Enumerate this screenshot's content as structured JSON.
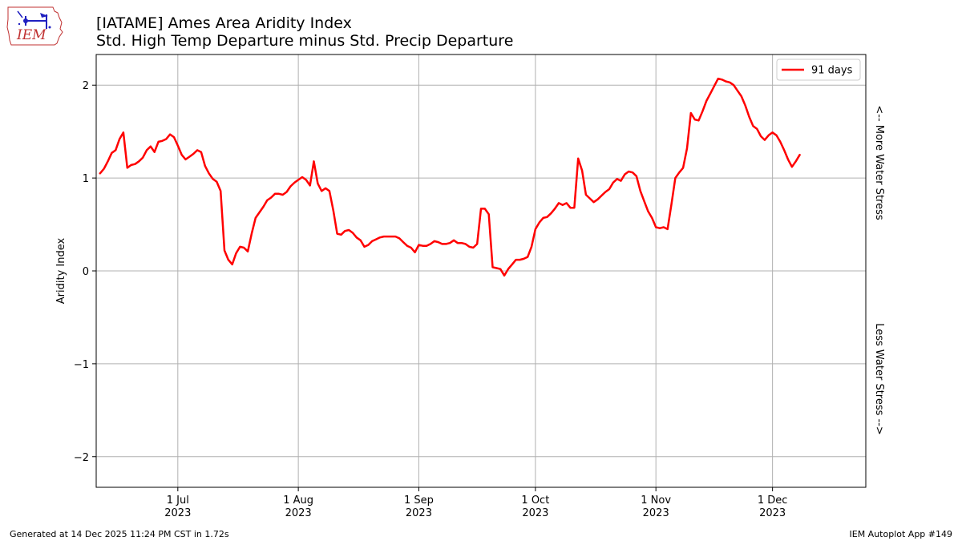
{
  "header": {
    "title": "[IATAME] Ames Area  Aridity Index",
    "subtitle": "Std. High Temp Departure minus Std. Precip Departure"
  },
  "logo": {
    "text": "IEM",
    "icon": "iem-iowa-logo-icon"
  },
  "footer": {
    "left": "Generated at 14 Dec 2025 11:24 PM CST in 1.72s",
    "right": "IEM Autoplot App #149"
  },
  "chart_data": {
    "type": "line",
    "ylabel": "Aridity Index",
    "right_label_top": "<-- More Water Stress",
    "right_label_bottom": "Less Water Stress -->",
    "ylim": [
      -2.33,
      2.33
    ],
    "xlim": [
      "2023-06-10",
      "2023-12-25"
    ],
    "yticks": [
      {
        "value": 2,
        "label": "2"
      },
      {
        "value": 1,
        "label": "1"
      },
      {
        "value": 0,
        "label": "0"
      },
      {
        "value": -1,
        "label": "−1"
      },
      {
        "value": -2,
        "label": "−2"
      }
    ],
    "xticks": [
      {
        "date": "2023-07-01",
        "label1": "1 Jul",
        "label2": "2023"
      },
      {
        "date": "2023-08-01",
        "label1": "1 Aug",
        "label2": "2023"
      },
      {
        "date": "2023-09-01",
        "label1": "1 Sep",
        "label2": "2023"
      },
      {
        "date": "2023-10-01",
        "label1": "1 Oct",
        "label2": "2023"
      },
      {
        "date": "2023-11-01",
        "label1": "1 Nov",
        "label2": "2023"
      },
      {
        "date": "2023-12-01",
        "label1": "1 Dec",
        "label2": "2023"
      }
    ],
    "grid": true,
    "legend": "top-right",
    "series": [
      {
        "name": "91 days",
        "color": "#ff0000",
        "start_date": "2023-06-11",
        "values": [
          1.05,
          1.1,
          1.18,
          1.27,
          1.3,
          1.42,
          1.49,
          1.11,
          1.14,
          1.15,
          1.18,
          1.22,
          1.3,
          1.34,
          1.28,
          1.39,
          1.4,
          1.42,
          1.47,
          1.44,
          1.35,
          1.25,
          1.2,
          1.23,
          1.26,
          1.3,
          1.28,
          1.13,
          1.05,
          0.99,
          0.96,
          0.86,
          0.22,
          0.12,
          0.07,
          0.19,
          0.26,
          0.25,
          0.21,
          0.4,
          0.57,
          0.63,
          0.69,
          0.76,
          0.79,
          0.83,
          0.83,
          0.82,
          0.85,
          0.91,
          0.95,
          0.98,
          1.01,
          0.98,
          0.92,
          1.18,
          0.94,
          0.86,
          0.89,
          0.86,
          0.65,
          0.4,
          0.39,
          0.43,
          0.44,
          0.41,
          0.36,
          0.33,
          0.26,
          0.28,
          0.32,
          0.34,
          0.36,
          0.37,
          0.37,
          0.37,
          0.37,
          0.35,
          0.31,
          0.27,
          0.25,
          0.2,
          0.28,
          0.27,
          0.27,
          0.29,
          0.32,
          0.31,
          0.29,
          0.29,
          0.3,
          0.33,
          0.3,
          0.3,
          0.29,
          0.26,
          0.25,
          0.29,
          0.67,
          0.67,
          0.61,
          0.04,
          0.03,
          0.02,
          -0.05,
          0.02,
          0.07,
          0.12,
          0.12,
          0.13,
          0.15,
          0.26,
          0.45,
          0.52,
          0.57,
          0.58,
          0.62,
          0.67,
          0.73,
          0.71,
          0.73,
          0.68,
          0.68,
          1.21,
          1.08,
          0.82,
          0.78,
          0.74,
          0.77,
          0.81,
          0.85,
          0.88,
          0.95,
          0.99,
          0.97,
          1.04,
          1.07,
          1.06,
          1.02,
          0.86,
          0.75,
          0.64,
          0.57,
          0.47,
          0.46,
          0.47,
          0.45,
          0.72,
          1.0,
          1.06,
          1.11,
          1.32,
          1.7,
          1.63,
          1.62,
          1.72,
          1.83,
          1.91,
          1.99,
          2.07,
          2.06,
          2.04,
          2.03,
          2.0,
          1.94,
          1.88,
          1.78,
          1.66,
          1.56,
          1.53,
          1.45,
          1.41,
          1.46,
          1.49,
          1.46,
          1.39,
          1.3,
          1.2,
          1.12,
          1.18,
          1.25
        ]
      }
    ]
  }
}
